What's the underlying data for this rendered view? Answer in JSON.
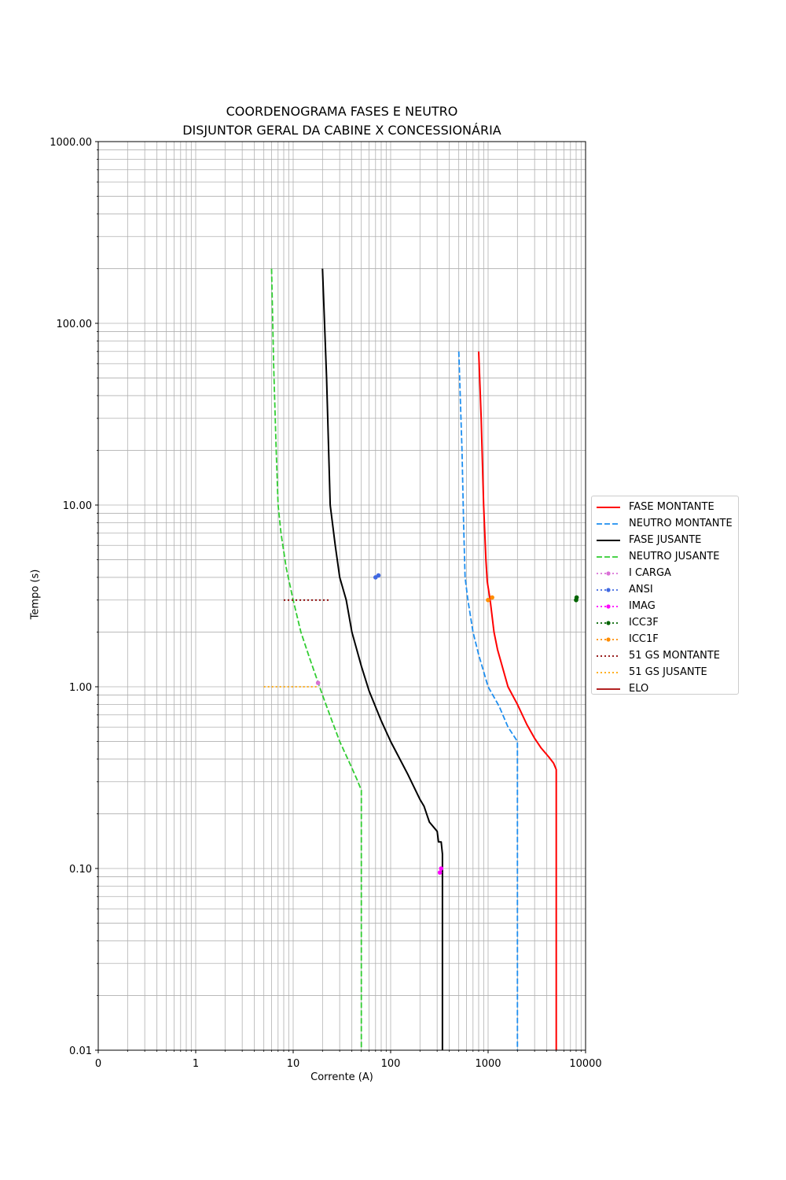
{
  "chart_data": {
    "type": "line",
    "title": "COORDENOGRAMA FASES E NEUTRO",
    "subtitle": "DISJUNTOR GERAL DA CABINE X CONCESSIONÁRIA",
    "xlabel": "Corrente (A)",
    "ylabel": "Tempo (s)",
    "xscale": "log",
    "yscale": "log",
    "xlim": [
      0.1,
      10000
    ],
    "ylim": [
      0.01,
      1000
    ],
    "x_ticks": [
      {
        "value": 0.1,
        "label": "0"
      },
      {
        "value": 1,
        "label": "1"
      },
      {
        "value": 10,
        "label": "10"
      },
      {
        "value": 100,
        "label": "100"
      },
      {
        "value": 1000,
        "label": "1000"
      },
      {
        "value": 10000,
        "label": "10000"
      }
    ],
    "y_ticks": [
      {
        "value": 0.01,
        "label": "0.01"
      },
      {
        "value": 0.1,
        "label": "0.10"
      },
      {
        "value": 1,
        "label": "1.00"
      },
      {
        "value": 10,
        "label": "10.00"
      },
      {
        "value": 100,
        "label": "100.00"
      },
      {
        "value": 1000,
        "label": "1000.00"
      }
    ],
    "grid": true,
    "legend_position": "right",
    "series": [
      {
        "name": "FASE MONTANTE",
        "color": "#ff0000",
        "style": "solid",
        "marker": "none",
        "points": [
          [
            800,
            70
          ],
          [
            850,
            30
          ],
          [
            900,
            10
          ],
          [
            950,
            5
          ],
          [
            980,
            3.8
          ],
          [
            1050,
            3
          ],
          [
            1150,
            2
          ],
          [
            1250,
            1.6
          ],
          [
            1600,
            1
          ],
          [
            2000,
            0.8
          ],
          [
            2500,
            0.62
          ],
          [
            3000,
            0.52
          ],
          [
            3500,
            0.46
          ],
          [
            4200,
            0.41
          ],
          [
            4700,
            0.38
          ],
          [
            5000,
            0.35
          ],
          [
            5000,
            0.01
          ]
        ]
      },
      {
        "name": "NEUTRO MONTANTE",
        "color": "#1f8ff0",
        "style": "dashed",
        "marker": "none",
        "points": [
          [
            500,
            70
          ],
          [
            540,
            20
          ],
          [
            560,
            8
          ],
          [
            580,
            4
          ],
          [
            620,
            3
          ],
          [
            700,
            2
          ],
          [
            800,
            1.5
          ],
          [
            1000,
            1
          ],
          [
            1300,
            0.78
          ],
          [
            1600,
            0.6
          ],
          [
            2000,
            0.5
          ],
          [
            2000,
            0.01
          ]
        ]
      },
      {
        "name": "FASE JUSANTE",
        "color": "#000000",
        "style": "solid",
        "marker": "none",
        "points": [
          [
            20,
            200
          ],
          [
            22,
            50
          ],
          [
            24,
            10
          ],
          [
            27,
            6
          ],
          [
            30,
            4
          ],
          [
            35,
            3
          ],
          [
            40,
            2
          ],
          [
            50,
            1.3
          ],
          [
            60,
            0.95
          ],
          [
            80,
            0.65
          ],
          [
            100,
            0.5
          ],
          [
            150,
            0.33
          ],
          [
            200,
            0.24
          ],
          [
            220,
            0.22
          ],
          [
            250,
            0.18
          ],
          [
            300,
            0.16
          ],
          [
            310,
            0.14
          ],
          [
            330,
            0.14
          ],
          [
            340,
            0.12
          ],
          [
            340,
            0.01
          ]
        ]
      },
      {
        "name": "NEUTRO JUSANTE",
        "color": "#32cd32",
        "style": "dashed",
        "marker": "none",
        "points": [
          [
            6,
            200
          ],
          [
            6.3,
            60
          ],
          [
            6.7,
            20
          ],
          [
            7,
            10
          ],
          [
            7.5,
            7
          ],
          [
            8.5,
            4.5
          ],
          [
            10,
            3
          ],
          [
            12,
            2
          ],
          [
            15,
            1.4
          ],
          [
            20,
            0.9
          ],
          [
            25,
            0.65
          ],
          [
            30,
            0.5
          ],
          [
            38,
            0.38
          ],
          [
            45,
            0.31
          ],
          [
            50,
            0.27
          ],
          [
            50,
            0.01
          ]
        ]
      },
      {
        "name": "I CARGA",
        "color": "#da70d6",
        "style": "dotted",
        "marker": "dot",
        "points": [
          [
            18,
            1.05
          ]
        ]
      },
      {
        "name": "ANSI",
        "color": "#4169e1",
        "style": "dotted",
        "marker": "dot",
        "points": [
          [
            70,
            4
          ],
          [
            75,
            4.1
          ]
        ]
      },
      {
        "name": "IMAG",
        "color": "#ff00ff",
        "style": "dotted",
        "marker": "dot",
        "points": [
          [
            320,
            0.095
          ],
          [
            330,
            0.1
          ]
        ]
      },
      {
        "name": "ICC3F",
        "color": "#006400",
        "style": "dotted",
        "marker": "dot",
        "points": [
          [
            8000,
            3
          ],
          [
            8100,
            3.1
          ]
        ]
      },
      {
        "name": "ICC1F",
        "color": "#ff8c00",
        "style": "dotted",
        "marker": "dot",
        "points": [
          [
            1000,
            3
          ],
          [
            1100,
            3.1
          ]
        ]
      },
      {
        "name": "51 GS MONTANTE",
        "color": "#8b0000",
        "style": "dotted",
        "marker": "none",
        "points": [
          [
            8,
            3
          ],
          [
            24,
            3
          ]
        ]
      },
      {
        "name": "51 GS JUSANTE",
        "color": "#ffa500",
        "style": "dotted",
        "marker": "none",
        "points": [
          [
            5,
            1
          ],
          [
            18,
            1
          ]
        ]
      },
      {
        "name": "ELO",
        "color": "#b22222",
        "style": "solid",
        "marker": "none",
        "points": []
      }
    ]
  }
}
